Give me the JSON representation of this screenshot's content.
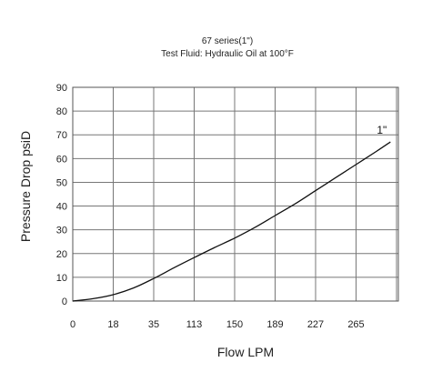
{
  "chart_data": {
    "type": "line",
    "title": "67 series(1\")",
    "subtitle": "Test Fluid: Hydraulic Oil at 100°F",
    "xlabel": "Flow LPM",
    "ylabel": "Pressure Drop psiD",
    "x_ticks": [
      "0",
      "18",
      "35",
      "113",
      "150",
      "189",
      "227",
      "265"
    ],
    "y_ticks": [
      0,
      10,
      20,
      30,
      40,
      50,
      60,
      70,
      80,
      90
    ],
    "ylim": [
      0,
      90
    ],
    "grid": true,
    "series": [
      {
        "name": "1\"",
        "points": [
          [
            0,
            0
          ],
          [
            0.5,
            1
          ],
          [
            1,
            2.7
          ],
          [
            1.5,
            5.5
          ],
          [
            2,
            9.5
          ],
          [
            2.5,
            14
          ],
          [
            3,
            18.3
          ],
          [
            3.5,
            22.5
          ],
          [
            4,
            26.5
          ],
          [
            4.5,
            31
          ],
          [
            5,
            36
          ],
          [
            5.5,
            41
          ],
          [
            6,
            46.5
          ],
          [
            6.5,
            52
          ],
          [
            7,
            57.5
          ],
          [
            7.5,
            63
          ],
          [
            7.85,
            67
          ]
        ]
      }
    ]
  }
}
